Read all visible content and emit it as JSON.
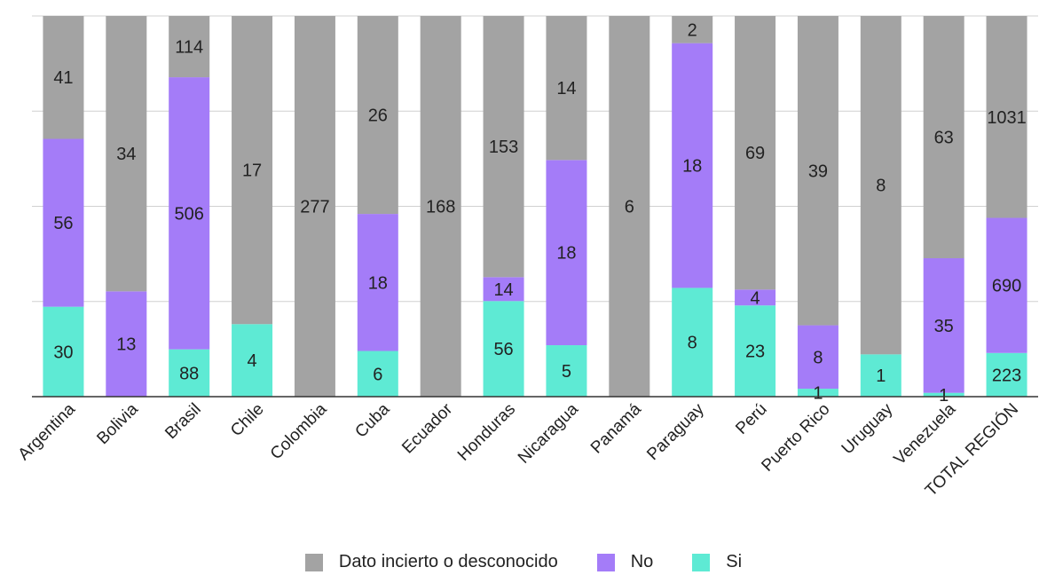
{
  "chart_data": {
    "type": "bar",
    "stacked": true,
    "normalized": true,
    "categories": [
      "Argentina",
      "Bolivia",
      "Brasil",
      "Chile",
      "Colombia",
      "Cuba",
      "Ecuador",
      "Honduras",
      "Nicaragua",
      "Panamá",
      "Paraguay",
      "Perú",
      "Puerto Rico",
      "Uruguay",
      "Venezuela",
      "TOTAL REGIÓN"
    ],
    "series": [
      {
        "name": "Si",
        "color": "#5eead4",
        "values": [
          30,
          0,
          88,
          4,
          0,
          6,
          0,
          56,
          5,
          0,
          8,
          23,
          1,
          1,
          1,
          223
        ]
      },
      {
        "name": "No",
        "color": "#a47cf8",
        "values": [
          56,
          13,
          506,
          0,
          0,
          18,
          0,
          14,
          18,
          0,
          18,
          4,
          8,
          0,
          35,
          690
        ]
      },
      {
        "name": "Dato incierto o desconocido",
        "color": "#a3a3a3",
        "values": [
          41,
          34,
          114,
          17,
          277,
          26,
          168,
          153,
          14,
          6,
          2,
          69,
          39,
          8,
          63,
          1031
        ]
      }
    ],
    "legend_order": [
      "Dato incierto o desconocido",
      "No",
      "Si"
    ],
    "legend_position": "bottom",
    "ylim": [
      0,
      1
    ],
    "grid": true,
    "xlabel": "",
    "ylabel": "",
    "title": ""
  }
}
